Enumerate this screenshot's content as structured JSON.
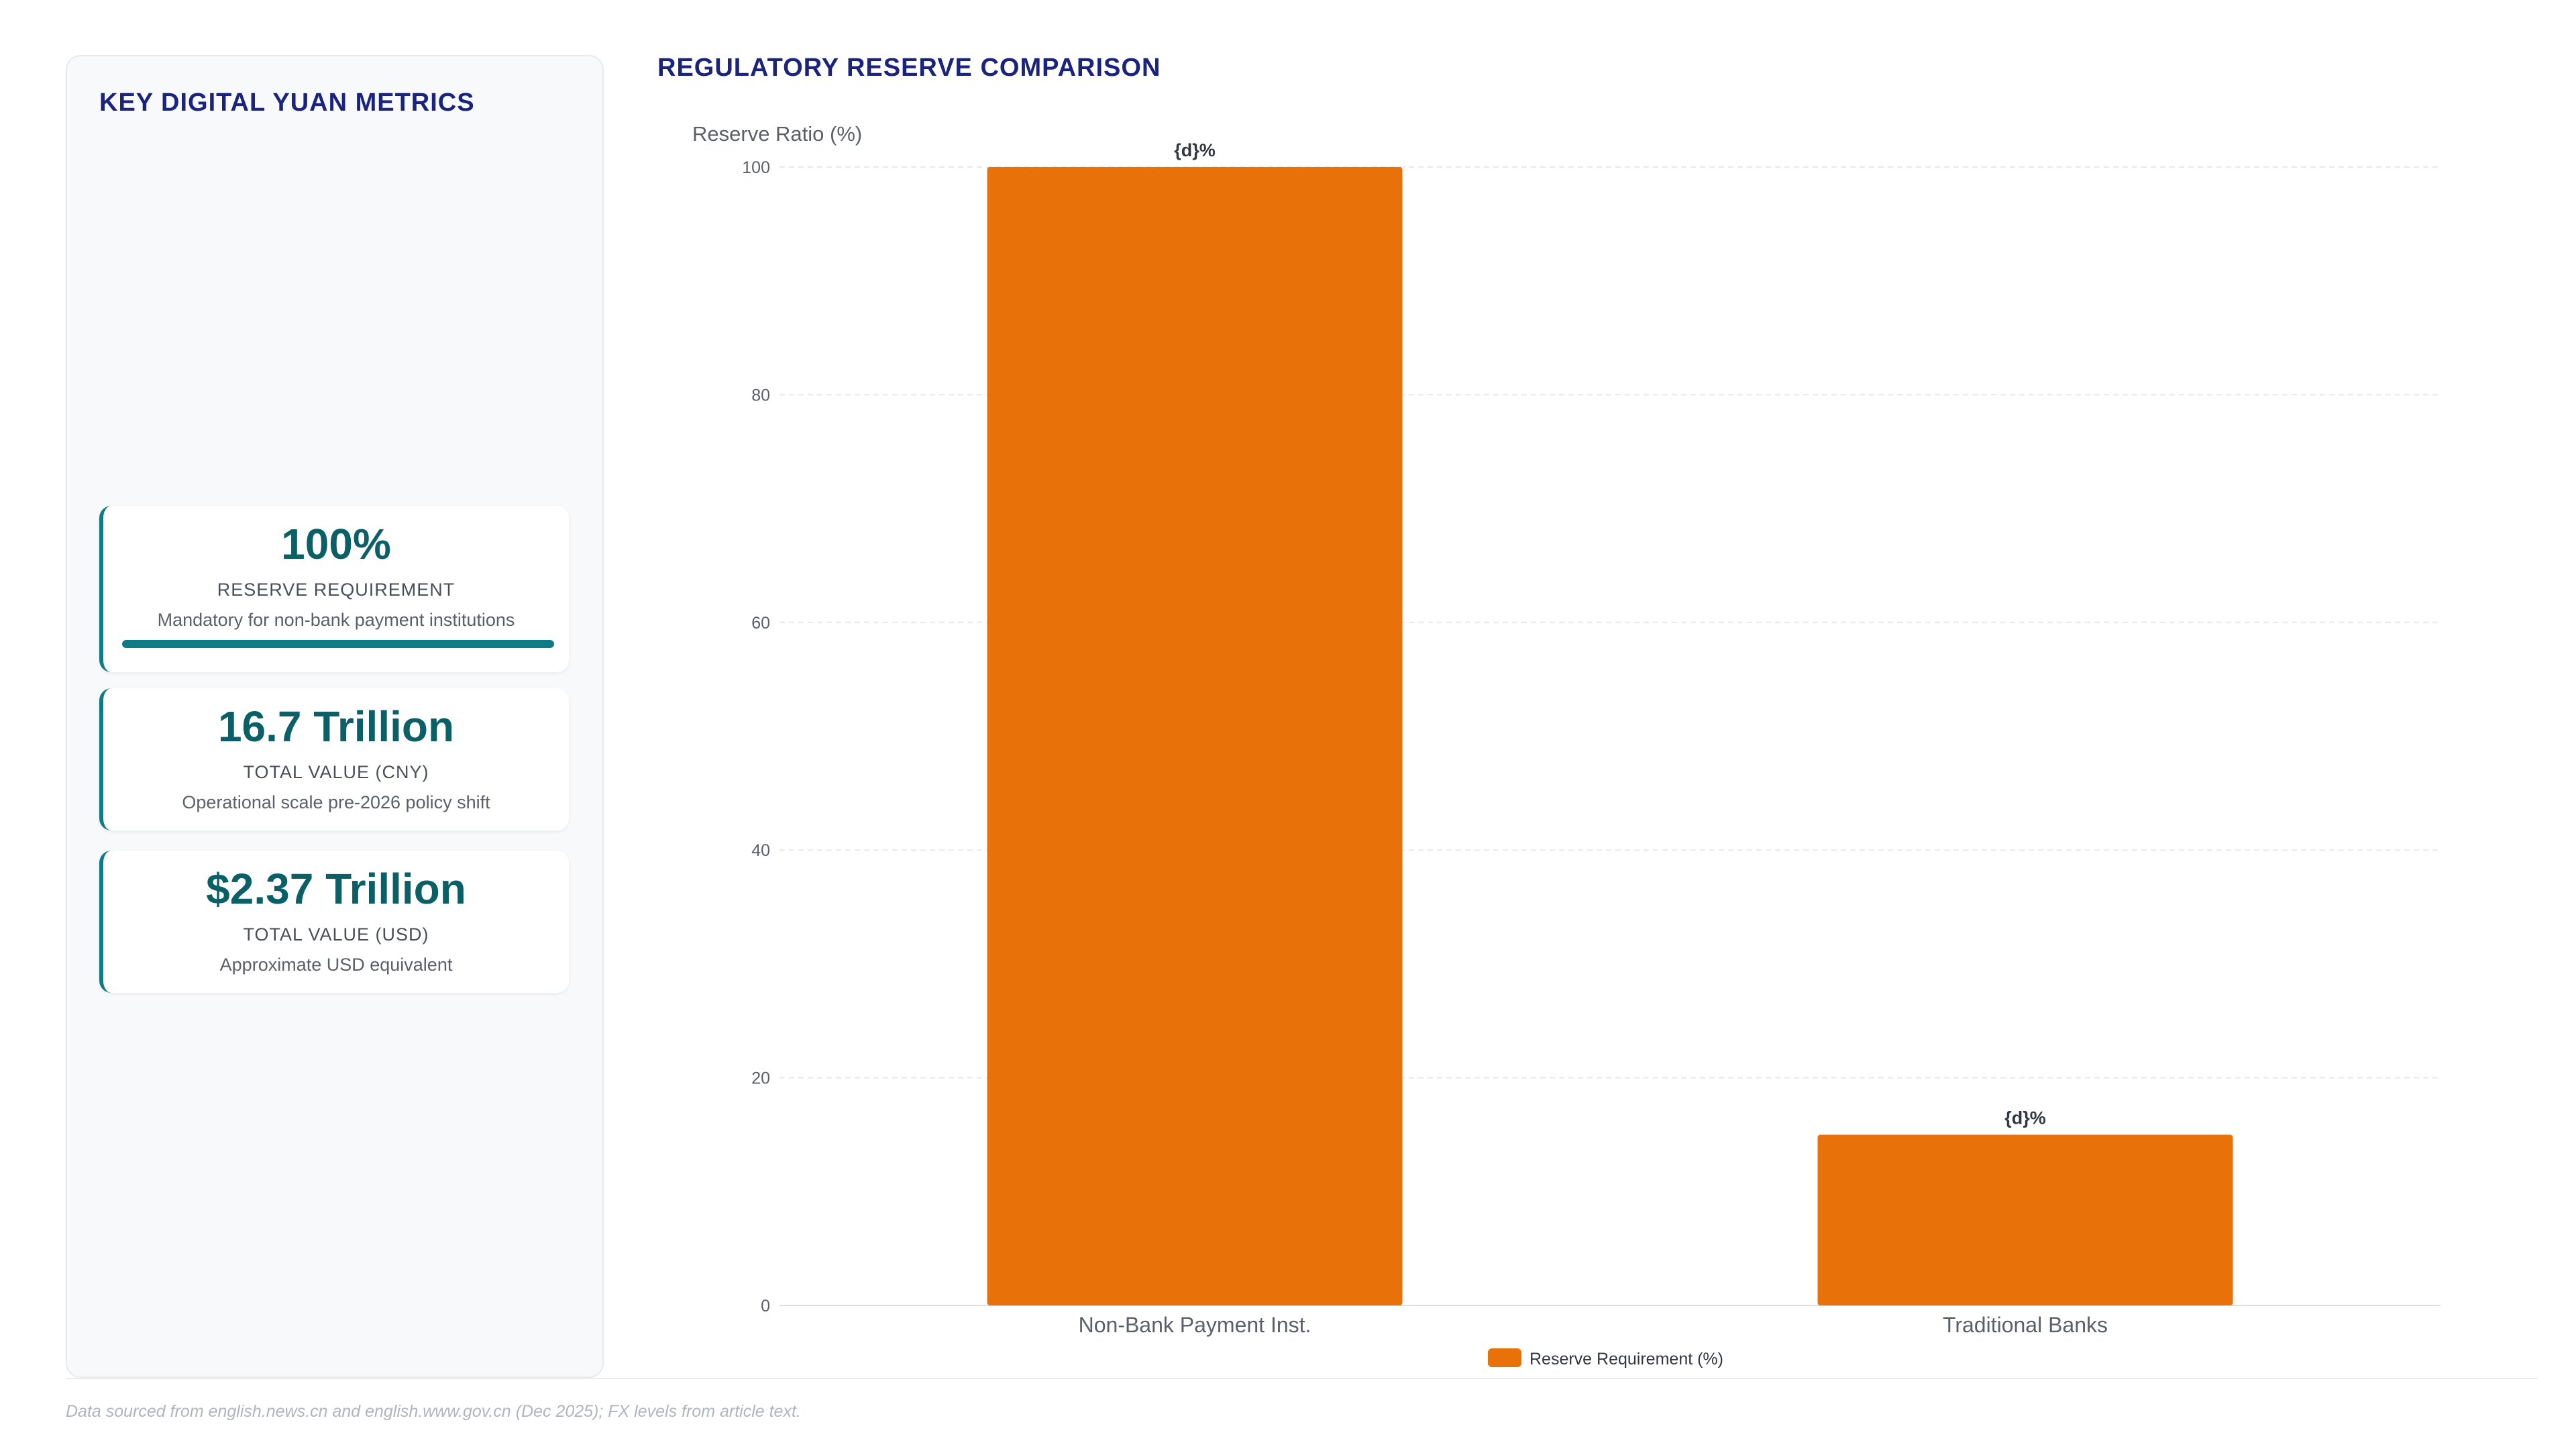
{
  "sidebar": {
    "title": "KEY DIGITAL YUAN METRICS",
    "cards": [
      {
        "value": "100%",
        "label": "RESERVE REQUIREMENT",
        "sub": "Mandatory for non-bank payment institutions",
        "progress": 1.0
      },
      {
        "value": "16.7 Trillion",
        "label": "TOTAL VALUE (CNY)",
        "sub": "Operational scale pre-2026 policy shift"
      },
      {
        "value": "$2.37 Trillion",
        "label": "TOTAL VALUE (USD)",
        "sub": "Approximate USD equivalent"
      }
    ]
  },
  "chart_title": "REGULATORY RESERVE COMPARISON",
  "chart_data": {
    "type": "bar",
    "categories": [
      "Non-Bank Payment Inst.",
      "Traditional Banks"
    ],
    "series": [
      {
        "name": "Reserve Requirement (%)",
        "values": [
          100,
          15
        ]
      }
    ],
    "data_labels": [
      "{d}%",
      "{d}%"
    ],
    "ylabel": "Reserve Ratio (%)",
    "ylim": [
      0,
      100
    ],
    "yticks": [
      0,
      20,
      40,
      60,
      80,
      100
    ],
    "grid": true,
    "legend_position": "bottom-center",
    "bar_color": "#e8710a"
  },
  "footer": "Data sourced from english.news.cn and english.www.gov.cn (Dec 2025); FX levels from article text."
}
